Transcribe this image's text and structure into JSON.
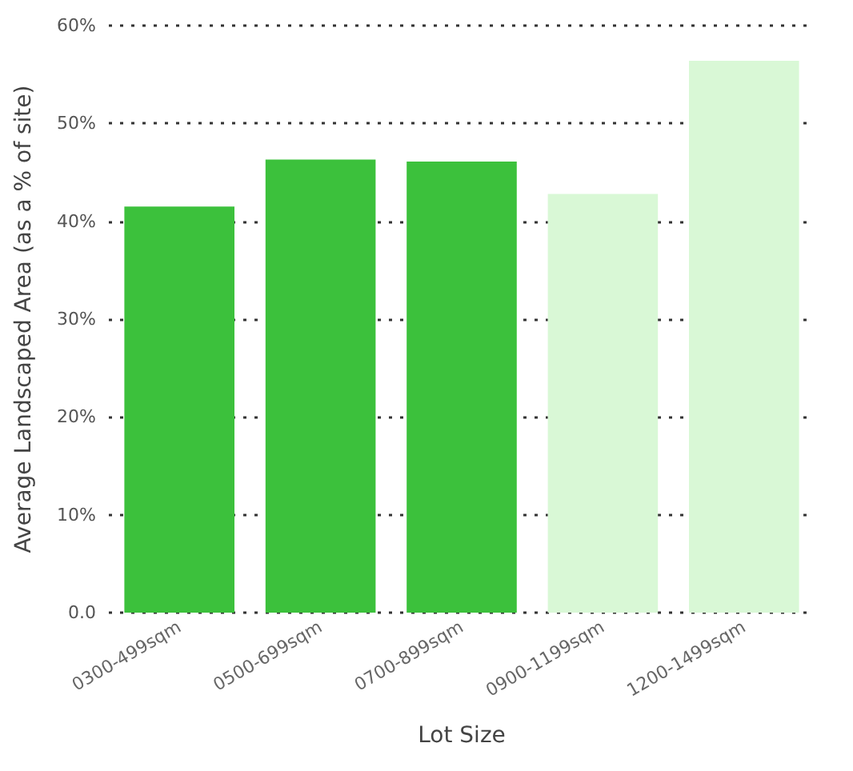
{
  "chart_data": {
    "type": "bar",
    "xlabel": "Lot Size",
    "ylabel": "Average Landscaped Area (as a % of site)",
    "categories": [
      "0300-499sqm",
      "0500-699sqm",
      "0700-899sqm",
      "0900-1199sqm",
      "1200-1499sqm"
    ],
    "values": [
      41.5,
      46.3,
      46.1,
      42.8,
      56.4
    ],
    "colors": [
      "#3cc13c",
      "#3cc13c",
      "#3cc13c",
      "#d9f8d6",
      "#d9f8d6"
    ],
    "ylim": [
      0,
      60
    ],
    "yticks": [
      {
        "value": 0,
        "label": "0.0"
      },
      {
        "value": 10,
        "label": "10%"
      },
      {
        "value": 20,
        "label": "20%"
      },
      {
        "value": 30,
        "label": "30%"
      },
      {
        "value": 40,
        "label": "40%"
      },
      {
        "value": 50,
        "label": "50%"
      },
      {
        "value": 60,
        "label": "60%"
      }
    ],
    "grid": "y"
  }
}
